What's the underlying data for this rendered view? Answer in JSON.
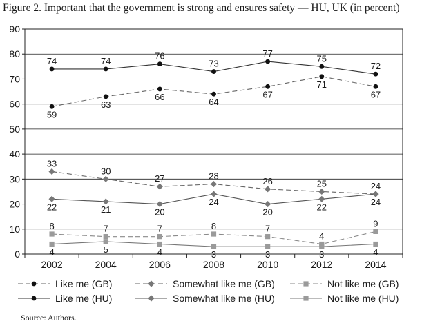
{
  "figure": {
    "title": "Figure 2. Important that the government is strong and ensures safety — HU, UK (in percent)",
    "source": "Source: Authors."
  },
  "chart_data": {
    "type": "line",
    "title": "Figure 2. Important that the government is strong and ensures safety — HU, UK (in percent)",
    "xlabel": "",
    "ylabel": "",
    "x": [
      2002,
      2004,
      2006,
      2008,
      2010,
      2012,
      2014
    ],
    "ylim": [
      0,
      90
    ],
    "yticks": [
      0,
      10,
      20,
      30,
      40,
      50,
      60,
      70,
      80,
      90
    ],
    "grid": true,
    "legend_position": "bottom",
    "series": [
      {
        "name": "Like me (GB)",
        "values": [
          59,
          63,
          66,
          64,
          67,
          71,
          67
        ],
        "marker": "circle",
        "dash": "dashed",
        "color": "#666666",
        "marker_color": "#111111",
        "label_side": [
          "below",
          "below",
          "below",
          "below",
          "below",
          "below",
          "below"
        ]
      },
      {
        "name": "Somewhat like me (GB)",
        "values": [
          33,
          30,
          27,
          28,
          26,
          25,
          24
        ],
        "marker": "diamond",
        "dash": "dashed",
        "color": "#666666",
        "marker_color": "#777777",
        "label_side": [
          "above",
          "above",
          "above",
          "above",
          "above",
          "above",
          "above"
        ]
      },
      {
        "name": "Not like me (GB)",
        "values": [
          8,
          7,
          7,
          8,
          7,
          4,
          9
        ],
        "marker": "square",
        "dash": "dashed",
        "color": "#8a8a8a",
        "marker_color": "#9a9a9a",
        "label_side": [
          "above",
          "above",
          "above",
          "above",
          "above",
          "above",
          "above"
        ]
      },
      {
        "name": "Like me (HU)",
        "values": [
          74,
          74,
          76,
          73,
          77,
          75,
          72
        ],
        "marker": "circle",
        "dash": "solid",
        "color": "#333333",
        "marker_color": "#111111",
        "label_side": [
          "above",
          "above",
          "above",
          "above",
          "above",
          "above",
          "above"
        ]
      },
      {
        "name": "Somewhat like me (HU)",
        "values": [
          22,
          21,
          20,
          24,
          20,
          22,
          24
        ],
        "marker": "diamond",
        "dash": "solid",
        "color": "#555555",
        "marker_color": "#777777",
        "label_side": [
          "below",
          "below",
          "below",
          "below",
          "below",
          "below",
          "below"
        ]
      },
      {
        "name": "Not like me (HU)",
        "values": [
          4,
          5,
          4,
          3,
          3,
          3,
          4
        ],
        "marker": "square",
        "dash": "solid",
        "color": "#777777",
        "marker_color": "#9a9a9a",
        "label_side": [
          "below",
          "below",
          "below",
          "below",
          "below",
          "below",
          "below"
        ]
      }
    ]
  }
}
